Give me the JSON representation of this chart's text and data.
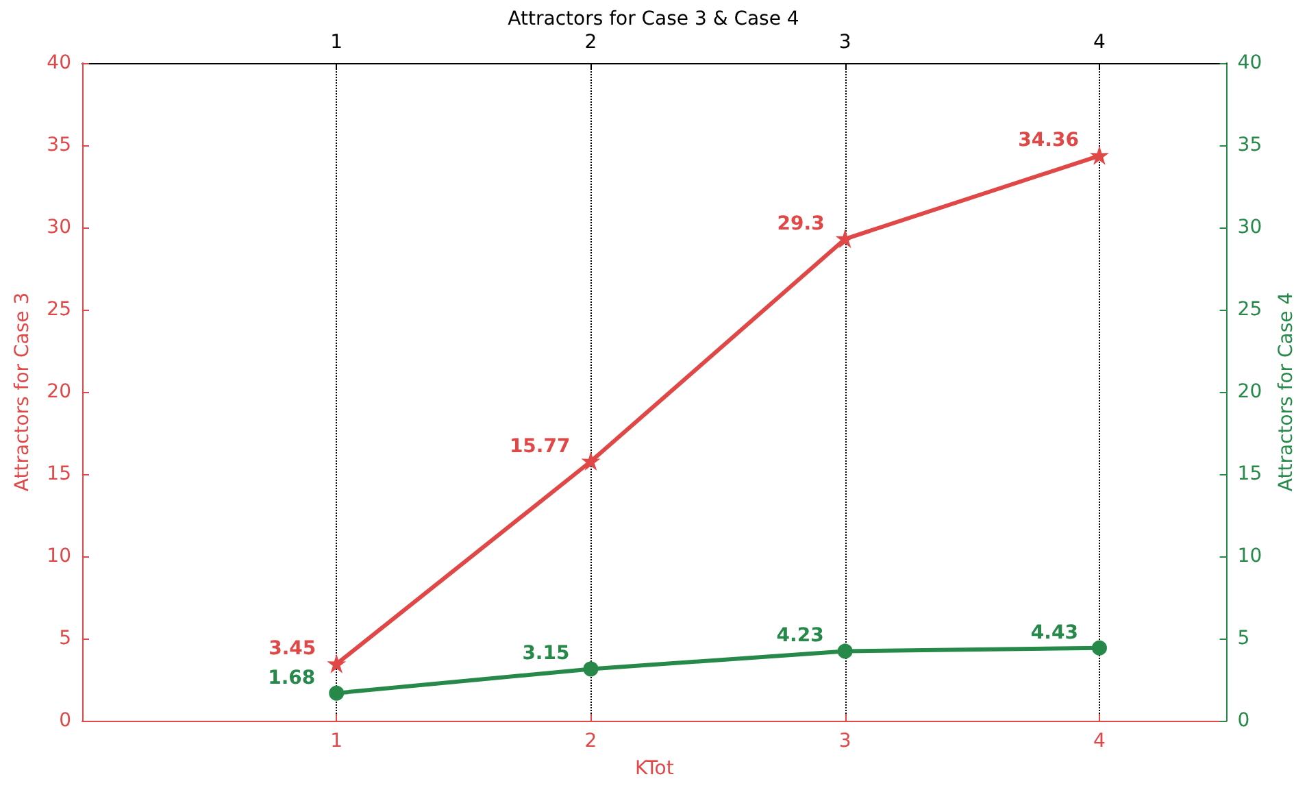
{
  "chart_data": {
    "type": "line",
    "title": "Attractors for Case 3 & Case 4",
    "xlabel": "KTot",
    "ylabel": "Attractors for Case 3",
    "y2label": "Attractors for Case 4",
    "x": [
      1,
      2,
      3,
      4
    ],
    "series": [
      {
        "color": "#e04848",
        "values": [
          3.45,
          15.77,
          29.3,
          34.36
        ],
        "marker": "star"
      },
      {
        "color": "#26894a",
        "values": [
          1.68,
          3.15,
          4.23,
          4.43
        ],
        "marker": "circle",
        "axis": "y2"
      }
    ],
    "xlim": [
      0,
      4.5
    ],
    "xticks": [
      1,
      2,
      3,
      4
    ],
    "x2lim": [
      0,
      4.5
    ],
    "x2ticks": [
      1,
      2,
      3,
      4
    ],
    "ylim": [
      0,
      40
    ],
    "yticks": [
      0,
      5,
      10,
      15,
      20,
      25,
      30,
      35,
      40
    ],
    "y2lim": [
      0,
      40
    ],
    "y2ticks": [
      0,
      5,
      10,
      15,
      20,
      25,
      30,
      35,
      40
    ],
    "grid": "x",
    "data_labels": true,
    "line_style": "solid"
  }
}
